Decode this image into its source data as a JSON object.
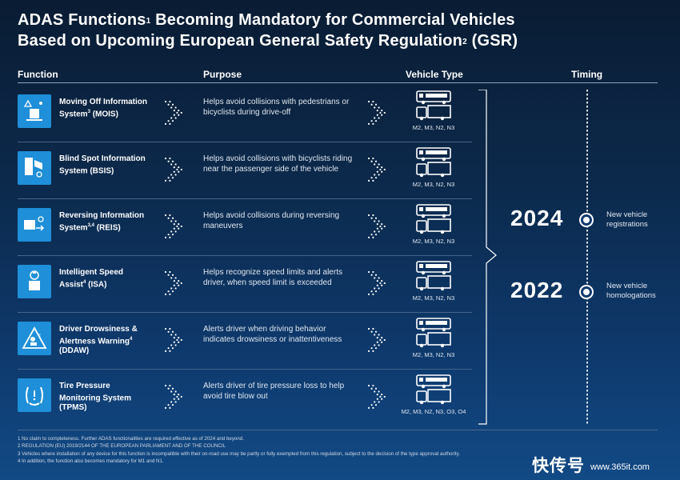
{
  "title": {
    "line1_text": "ADAS Functions",
    "line1_sup": "1",
    "line1_rest": " Becoming Mandatory for Commercial Vehicles",
    "line2_text": "Based on Upcoming European General Safety Regulation",
    "line2_sup": "2",
    "line2_rest": " (GSR)"
  },
  "headers": {
    "function": "Function",
    "purpose": "Purpose",
    "vehicle_type": "Vehicle Type",
    "timing": "Timing"
  },
  "colors": {
    "icon_bg": "#1e8fd8",
    "background": "#0c2a4d",
    "text": "#ffffff"
  },
  "functions": [
    {
      "icon": "moving-off-icon",
      "name_line1": "Moving Off Information",
      "name_line2": "System",
      "name_sup": "3",
      "name_suffix": " (MOIS)",
      "name_line3": "",
      "purpose": "Helps avoid collisions with pedestrians or bicyclists during drive-off",
      "vehicle_types": "M2, M3, N2, N3"
    },
    {
      "icon": "blind-spot-icon",
      "name_line1": "Blind Spot Information",
      "name_line2": "System (BSIS)",
      "name_sup": "",
      "name_suffix": "",
      "name_line3": "",
      "purpose": "Helps avoid collisions with bicyclists riding near the passenger side of the vehicle",
      "vehicle_types": "M2, M3, N2, N3"
    },
    {
      "icon": "reversing-icon",
      "name_line1": "Reversing Information",
      "name_line2": "System",
      "name_sup": "3,4",
      "name_suffix": " (REIS)",
      "name_line3": "",
      "purpose": "Helps avoid collisions during reversing maneuvers",
      "vehicle_types": "M2, M3, N2, N3"
    },
    {
      "icon": "speed-limit-icon",
      "name_line1": "Intelligent Speed",
      "name_line2": "Assist",
      "name_sup": "4",
      "name_suffix": " (ISA)",
      "name_line3": "",
      "purpose": "Helps recognize speed limits and alerts driver, when speed limit is exceeded",
      "vehicle_types": "M2, M3, N2, N3"
    },
    {
      "icon": "drowsiness-warning-icon",
      "name_line1": "Driver Drowsiness &",
      "name_line2": "Alertness Warning",
      "name_sup": "4",
      "name_suffix": "",
      "name_line3": "(DDAW)",
      "purpose": "Alerts driver when driving behavior indicates drowsiness or inattentiveness",
      "vehicle_types": "M2, M3, N2, N3"
    },
    {
      "icon": "tire-pressure-icon",
      "name_line1": "Tire Pressure",
      "name_line2": "Monitoring System",
      "name_sup": "",
      "name_suffix": "",
      "name_line3": "(TPMS)",
      "purpose": "Alerts driver of tire pressure loss to help avoid tire blow out",
      "vehicle_types": "M2, M3, N2, N3, O3, O4"
    }
  ],
  "timing": [
    {
      "year": "2024",
      "label_line1": "New vehicle",
      "label_line2": "registrations"
    },
    {
      "year": "2022",
      "label_line1": "New vehicle",
      "label_line2": "homologations"
    }
  ],
  "footnotes": [
    "1 No claim to completeness. Further ADAS functionalities are required effective as of 2024 and beyond.",
    "2 REGULATION (EU) 2019/2144 OF THE EUROPEAN PARLIAMENT AND OF THE COUNCIL",
    "3 Vehicles where installation of any device for this function is incompatible with their on-road use may be partly or fully exempted from this regulation, subject to the decision of the type approval authority.",
    "4 In addition, the function also becomes mandatory for M1 and N1."
  ],
  "watermark": {
    "text": "快传号",
    "url": "www.365it.com"
  }
}
